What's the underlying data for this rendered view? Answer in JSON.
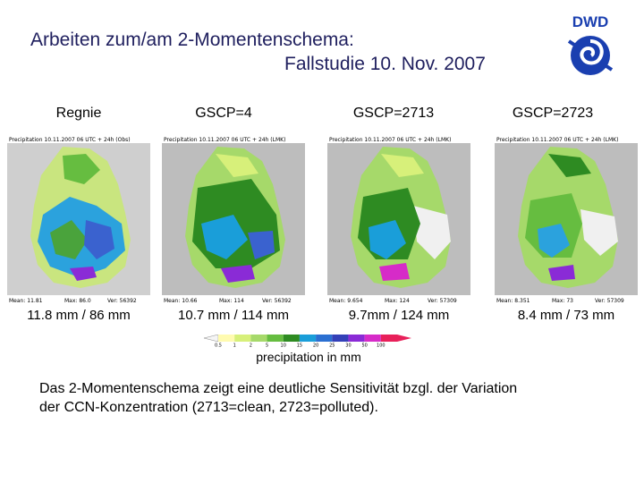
{
  "title": {
    "line1": "Arbeiten zum/am 2-Momentenschema:",
    "line2": "Fallstudie 10. Nov. 2007"
  },
  "logo": {
    "text": "DWD",
    "icon": "dwd-logo-icon"
  },
  "panels": [
    {
      "heading": "Regnie",
      "map_header": "Precipitation 10.11.2007 06 UTC + 24h (Obs)",
      "caption": "11.8 mm / 86 mm",
      "footer": [
        "Mean: 11.81",
        "Max: 86.0",
        "Ver: 56392"
      ]
    },
    {
      "heading": "GSCP=4",
      "map_header": "Precipitation 10.11.2007 06 UTC + 24h (LMK)",
      "caption": "10.7 mm / 114 mm",
      "footer": [
        "Mean: 10.66",
        "Max: 114",
        "Ver: 56392"
      ]
    },
    {
      "heading": "GSCP=2713",
      "map_header": "Precipitation 10.11.2007 06 UTC + 24h (LMK)",
      "caption": "9.7mm / 124 mm",
      "footer": [
        "Mean: 9.654",
        "Max: 124",
        "Ver: 57309"
      ]
    },
    {
      "heading": "GSCP=2723",
      "map_header": "Precipitation 10.11.2007 06 UTC + 24h (LMK)",
      "caption": "8.4 mm / 73 mm",
      "footer": [
        "Mean: 8.351",
        "Max: 73",
        "Ver: 57309"
      ]
    }
  ],
  "legend": {
    "label": "precipitation in mm",
    "ticks": [
      "0.5",
      "1",
      "2",
      "5",
      "10",
      "15",
      "20",
      "25",
      "30",
      "50",
      "100"
    ],
    "colors": [
      "#fffbb0",
      "#d7f07a",
      "#a6d96a",
      "#66bd40",
      "#2e8b22",
      "#1a9ed9",
      "#2b6fd1",
      "#3340b8",
      "#8a2bd6",
      "#d62bc8",
      "#e8205a"
    ]
  },
  "body_text": {
    "line1": "Das 2-Momentenschema zeigt eine deutliche Sensitivität bzgl. der Variation",
    "line2": "der CCN-Konzentration (2713=clean, 2723=polluted)."
  }
}
